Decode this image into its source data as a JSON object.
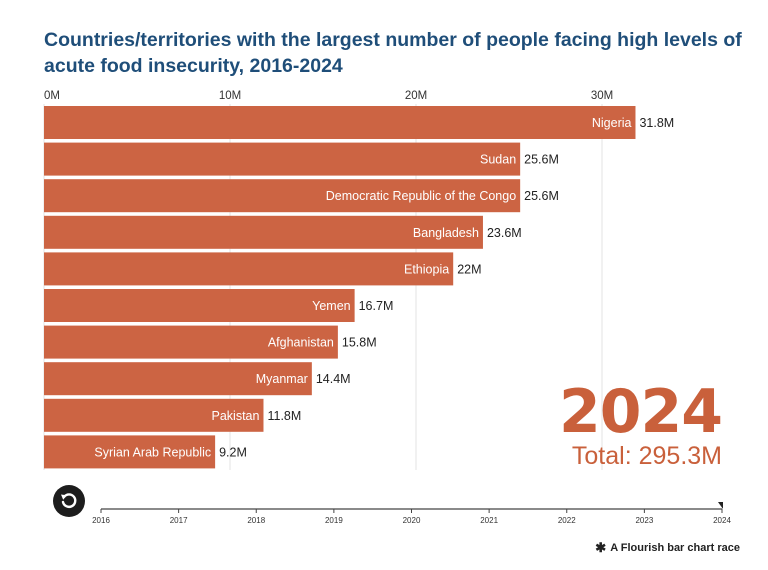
{
  "title": "Countries/territories with the largest number of people facing high levels of acute food insecurity, 2016-2024",
  "current_year": "2024",
  "total_label": "Total: 295.3M",
  "attribution": "A Flourish bar chart race",
  "icons": {
    "replay": "replay-icon",
    "flourish": "flourish-asterisk-icon"
  },
  "colors": {
    "bar": "#cc6443",
    "title": "#1f4e79",
    "year": "#c9603b"
  },
  "chart_data": {
    "type": "bar",
    "orientation": "horizontal",
    "title": "Countries/territories with the largest number of people facing high levels of acute food insecurity, 2016-2024",
    "categories": [
      "Nigeria",
      "Sudan",
      "Democratic Republic of the Congo",
      "Bangladesh",
      "Ethiopia",
      "Yemen",
      "Afghanistan",
      "Myanmar",
      "Pakistan",
      "Syrian Arab Republic"
    ],
    "values": [
      31.8,
      25.6,
      25.6,
      23.6,
      22,
      16.7,
      15.8,
      14.4,
      11.8,
      9.2
    ],
    "value_labels": [
      "31.8M",
      "25.6M",
      "25.6M",
      "23.6M",
      "22M",
      "16.7M",
      "15.8M",
      "14.4M",
      "11.8M",
      "9.2M"
    ],
    "x_ticks": [
      0,
      10,
      20,
      30
    ],
    "x_tick_labels": [
      "0M",
      "10M",
      "20M",
      "30M"
    ],
    "xlim": [
      0,
      32
    ],
    "grid": true,
    "axis_position": "top",
    "timeline": {
      "years": [
        "2016",
        "2017",
        "2018",
        "2019",
        "2020",
        "2021",
        "2022",
        "2023",
        "2024"
      ],
      "current": "2024"
    }
  }
}
